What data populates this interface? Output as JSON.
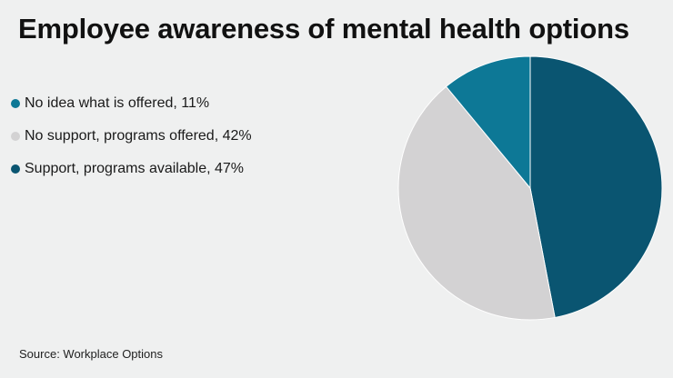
{
  "chart_data": {
    "type": "pie",
    "title": "Employee awareness of mental health options",
    "slices": [
      {
        "label": "Support, programs available, 47%",
        "value": 47,
        "color": "#0a5571"
      },
      {
        "label": "No support, programs offered, 42%",
        "value": 42,
        "color": "#d3d2d3"
      },
      {
        "label": "No idea what is offered, 11%",
        "value": 11,
        "color": "#0d7896"
      }
    ],
    "legend_order": [
      2,
      1,
      0
    ],
    "legend_position": "left",
    "source": "Source: Workplace Options"
  },
  "colors": {
    "background": "#eff0f0",
    "slice_border": "#ffffff"
  }
}
